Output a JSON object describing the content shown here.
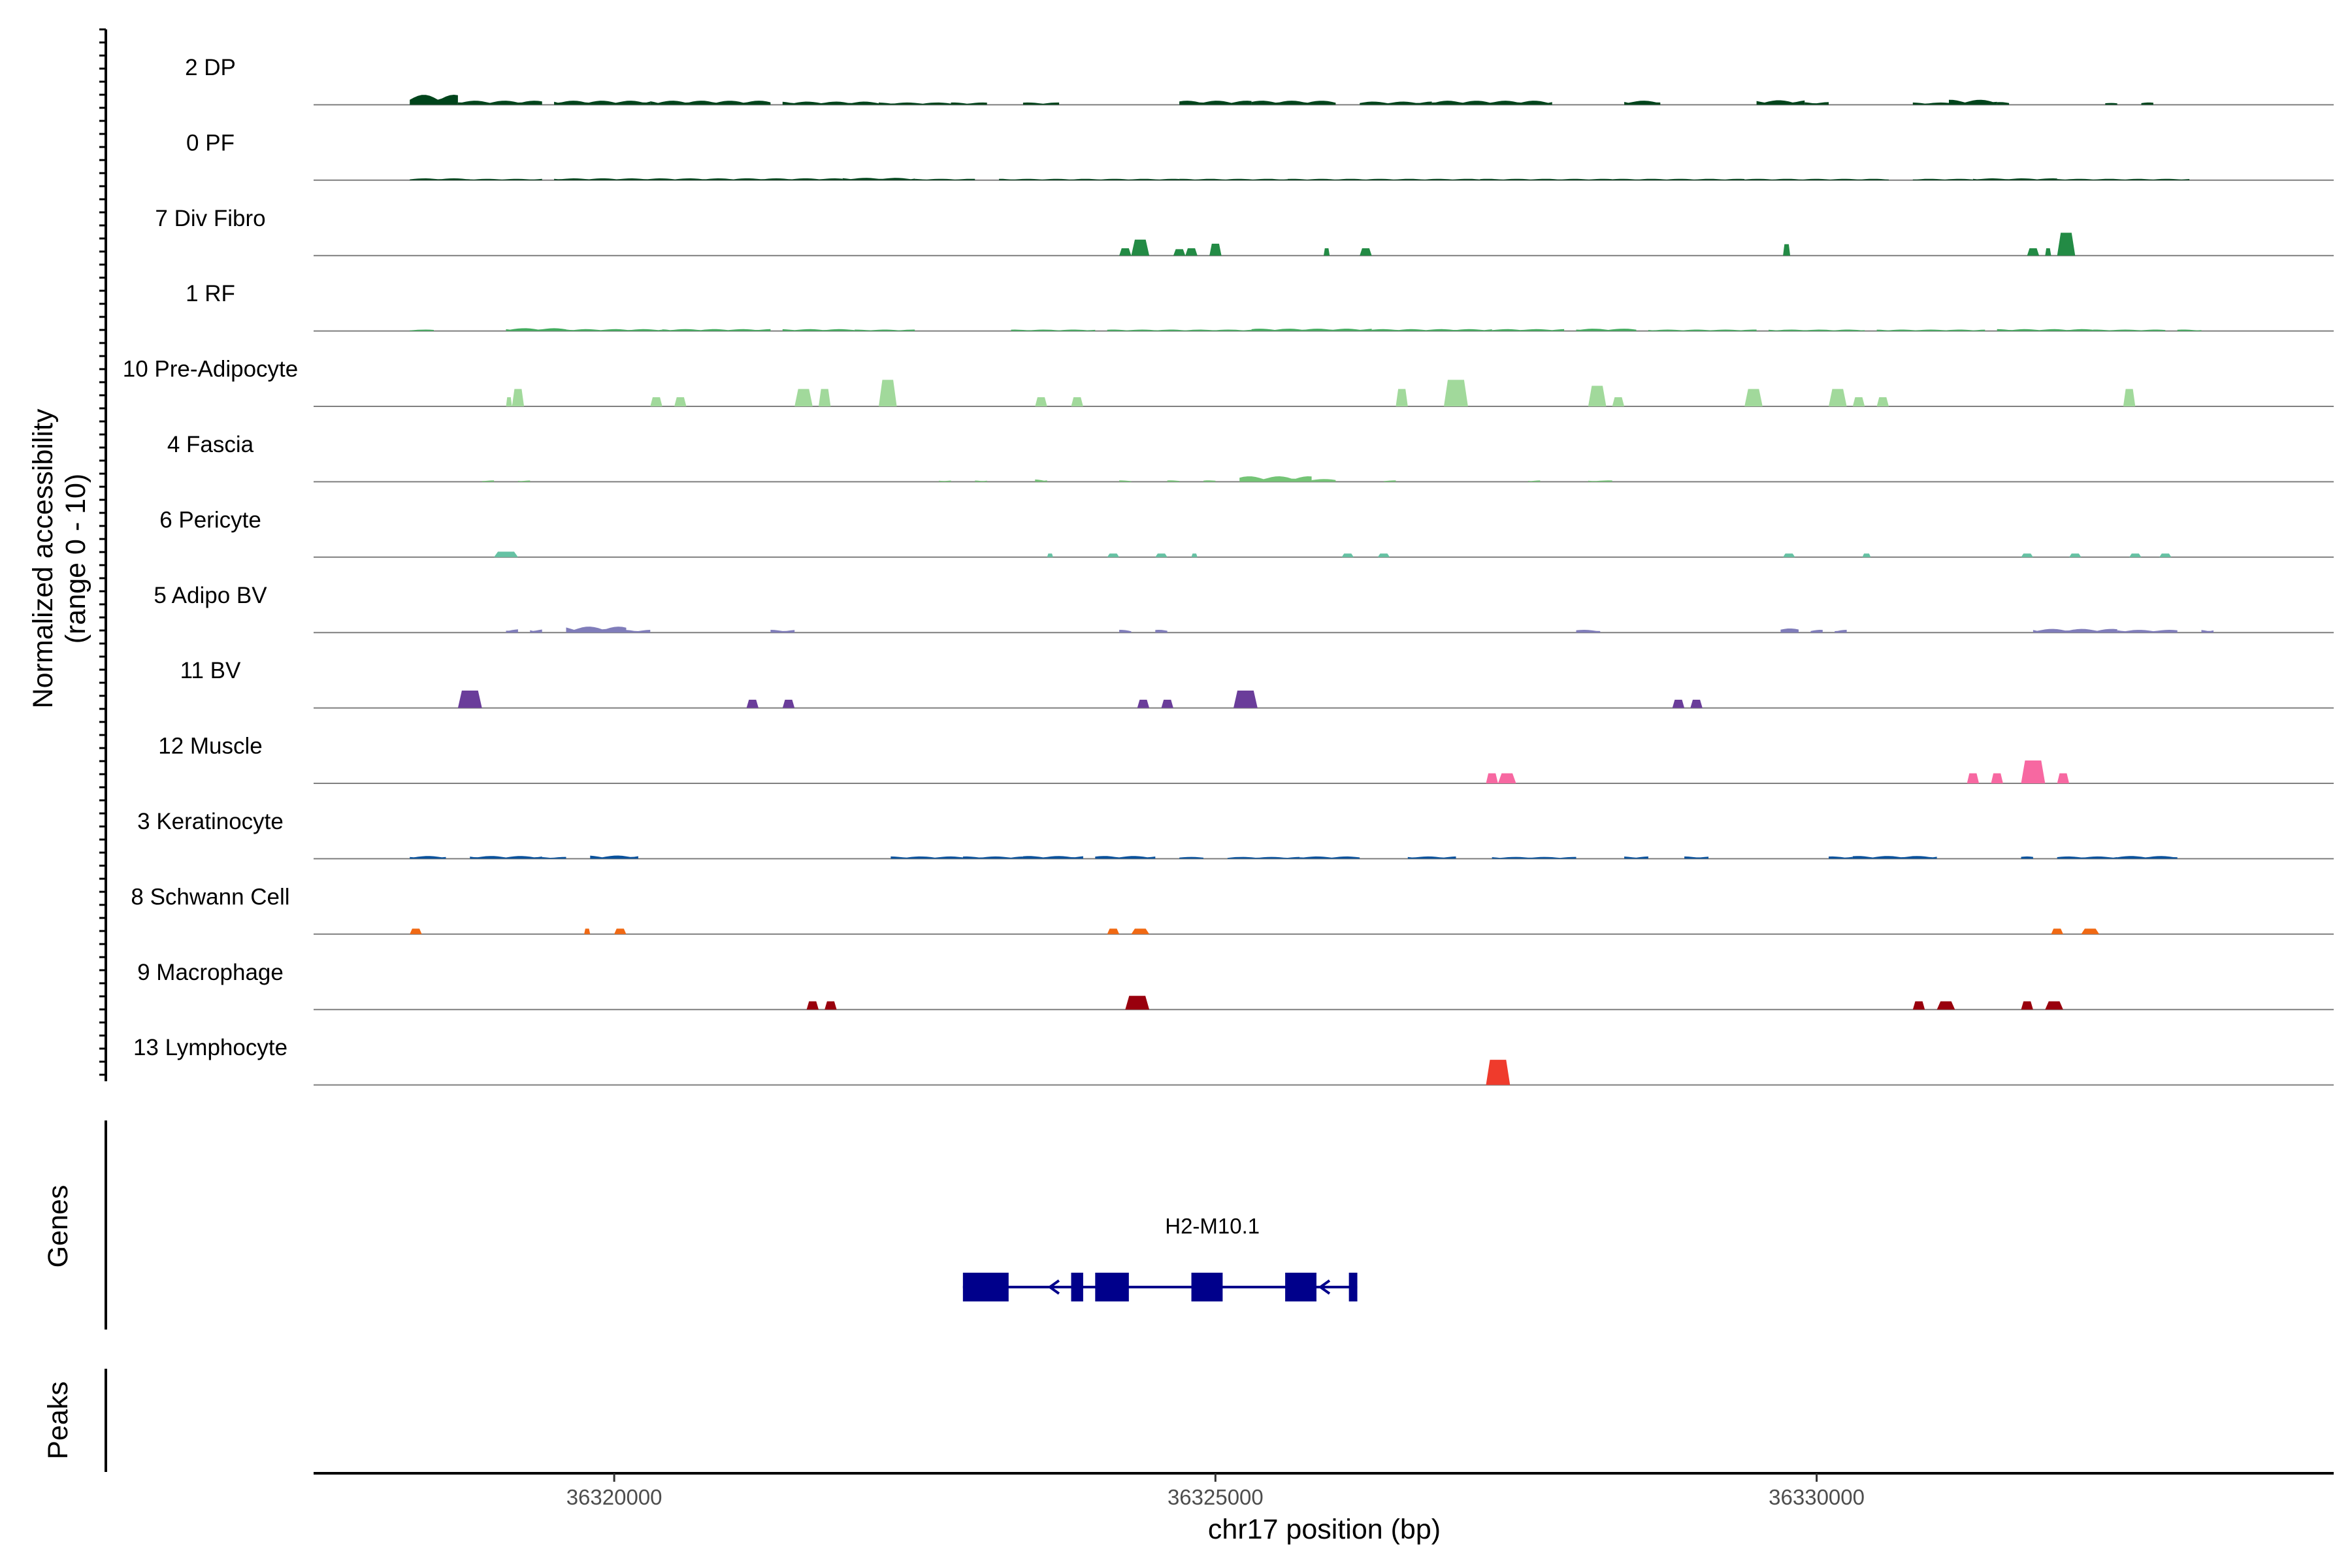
{
  "chart_data": {
    "type": "area",
    "title": "",
    "ylabel_line1": "Normalized accessibility",
    "ylabel_line2": "(range 0 - 10)",
    "yrange": [
      0,
      10
    ],
    "xlabel": "chr17 position (bp)",
    "xlim": [
      36317500,
      36334300
    ],
    "x_ticks": [
      36320000,
      36325000,
      36330000
    ],
    "x_tick_labels": [
      "36320000",
      "36325000",
      "36330000"
    ],
    "genes_panel_label": "Genes",
    "peaks_panel_label": "Peaks",
    "tracks": [
      {
        "name": "2 DP",
        "color": "#00441b",
        "style": "spiky",
        "segments": [
          [
            36318300,
            36318700,
            2.2
          ],
          [
            36318700,
            36319400,
            0.9
          ],
          [
            36319500,
            36320300,
            0.9
          ],
          [
            36320300,
            36321300,
            0.9
          ],
          [
            36321400,
            36322200,
            0.7
          ],
          [
            36322200,
            36322800,
            0.5
          ],
          [
            36322800,
            36323100,
            0.5
          ],
          [
            36323400,
            36323700,
            0.5
          ],
          [
            36324700,
            36325300,
            0.9
          ],
          [
            36325300,
            36326000,
            0.9
          ],
          [
            36326200,
            36326800,
            0.7
          ],
          [
            36326800,
            36327800,
            0.9
          ],
          [
            36328400,
            36328700,
            0.9
          ],
          [
            36329500,
            36329900,
            1.0
          ],
          [
            36329900,
            36330100,
            0.6
          ],
          [
            36330800,
            36331100,
            0.5
          ],
          [
            36331100,
            36331500,
            1.1
          ],
          [
            36331500,
            36331600,
            0.6
          ],
          [
            36332400,
            36332500,
            0.4
          ],
          [
            36332700,
            36332800,
            0.5
          ]
        ]
      },
      {
        "name": "0 PF",
        "color": "#00441b",
        "style": "spiky",
        "segments": [
          [
            36318300,
            36318800,
            0.4
          ],
          [
            36318800,
            36319400,
            0.3
          ],
          [
            36319500,
            36321900,
            0.4
          ],
          [
            36321900,
            36322500,
            0.5
          ],
          [
            36322500,
            36323000,
            0.3
          ],
          [
            36323200,
            36324700,
            0.3
          ],
          [
            36324700,
            36325600,
            0.3
          ],
          [
            36325600,
            36327200,
            0.3
          ],
          [
            36327200,
            36328300,
            0.3
          ],
          [
            36328300,
            36329400,
            0.3
          ],
          [
            36329400,
            36330600,
            0.3
          ],
          [
            36330800,
            36331300,
            0.3
          ],
          [
            36331300,
            36332000,
            0.4
          ],
          [
            36332000,
            36332700,
            0.3
          ],
          [
            36332700,
            36333100,
            0.3
          ]
        ]
      },
      {
        "name": "7 Div Fibro",
        "color": "#238b45",
        "style": "blocks",
        "segments": [
          [
            36324200,
            36324300,
            1.6
          ],
          [
            36324300,
            36324450,
            3.5
          ],
          [
            36324650,
            36324750,
            1.4
          ],
          [
            36324750,
            36324850,
            1.6
          ],
          [
            36324950,
            36325050,
            2.6
          ],
          [
            36325900,
            36325950,
            1.6
          ],
          [
            36326200,
            36326300,
            1.6
          ],
          [
            36329720,
            36329780,
            2.5
          ],
          [
            36331750,
            36331850,
            1.6
          ],
          [
            36331900,
            36331950,
            1.6
          ],
          [
            36332000,
            36332150,
            5.0
          ]
        ]
      },
      {
        "name": "1 RF",
        "color": "#41ab5d",
        "style": "spiky",
        "segments": [
          [
            36318300,
            36318500,
            0.3
          ],
          [
            36319100,
            36319600,
            0.6
          ],
          [
            36319600,
            36320400,
            0.4
          ],
          [
            36320400,
            36321300,
            0.4
          ],
          [
            36321400,
            36322000,
            0.4
          ],
          [
            36322000,
            36322500,
            0.3
          ],
          [
            36323300,
            36324000,
            0.3
          ],
          [
            36324100,
            36325300,
            0.3
          ],
          [
            36325300,
            36326300,
            0.5
          ],
          [
            36326300,
            36327300,
            0.4
          ],
          [
            36327300,
            36327900,
            0.4
          ],
          [
            36328000,
            36328500,
            0.5
          ],
          [
            36328600,
            36329500,
            0.3
          ],
          [
            36329600,
            36330400,
            0.3
          ],
          [
            36330500,
            36331400,
            0.3
          ],
          [
            36331500,
            36332300,
            0.4
          ],
          [
            36332300,
            36332900,
            0.3
          ],
          [
            36333000,
            36333200,
            0.3
          ]
        ]
      },
      {
        "name": "10 Pre-Adipocyte",
        "color": "#a1d99b",
        "style": "blocks",
        "segments": [
          [
            36319100,
            36319150,
            2.0
          ],
          [
            36319150,
            36319250,
            3.8
          ],
          [
            36320300,
            36320400,
            2.0
          ],
          [
            36320500,
            36320600,
            2.0
          ],
          [
            36321500,
            36321650,
            3.8
          ],
          [
            36321700,
            36321800,
            3.8
          ],
          [
            36322200,
            36322350,
            5.8
          ],
          [
            36323500,
            36323600,
            2.0
          ],
          [
            36323800,
            36323900,
            2.0
          ],
          [
            36326500,
            36326600,
            3.8
          ],
          [
            36326900,
            36327100,
            5.8
          ],
          [
            36328100,
            36328250,
            4.5
          ],
          [
            36328300,
            36328400,
            2.0
          ],
          [
            36329400,
            36329550,
            3.8
          ],
          [
            36330100,
            36330250,
            3.8
          ],
          [
            36330300,
            36330400,
            2.0
          ],
          [
            36330500,
            36330600,
            2.0
          ],
          [
            36332550,
            36332650,
            3.8
          ]
        ]
      },
      {
        "name": "4 Fascia",
        "color": "#74c476",
        "style": "spiky",
        "segments": [
          [
            36318900,
            36319000,
            0.3
          ],
          [
            36319200,
            36319300,
            0.3
          ],
          [
            36322700,
            36322800,
            0.3
          ],
          [
            36323000,
            36323100,
            0.3
          ],
          [
            36323500,
            36323600,
            0.5
          ],
          [
            36324200,
            36324300,
            0.3
          ],
          [
            36324600,
            36324700,
            0.3
          ],
          [
            36324900,
            36325000,
            0.3
          ],
          [
            36325200,
            36325800,
            1.2
          ],
          [
            36325800,
            36326000,
            0.6
          ],
          [
            36326400,
            36326500,
            0.3
          ],
          [
            36327600,
            36327700,
            0.3
          ],
          [
            36328100,
            36328300,
            0.3
          ]
        ]
      },
      {
        "name": "6 Pericyte",
        "color": "#66c2a4",
        "style": "blocks",
        "segments": [
          [
            36319000,
            36319200,
            1.2
          ],
          [
            36323600,
            36323650,
            0.8
          ],
          [
            36324100,
            36324200,
            0.8
          ],
          [
            36324500,
            36324600,
            0.8
          ],
          [
            36324800,
            36324850,
            0.8
          ],
          [
            36326050,
            36326150,
            0.8
          ],
          [
            36326350,
            36326450,
            0.8
          ],
          [
            36329720,
            36329820,
            0.8
          ],
          [
            36330380,
            36330450,
            0.8
          ],
          [
            36331700,
            36331800,
            0.8
          ],
          [
            36332100,
            36332200,
            0.8
          ],
          [
            36332600,
            36332700,
            0.8
          ],
          [
            36332850,
            36332950,
            0.8
          ]
        ]
      },
      {
        "name": "5 Adipo BV",
        "color": "#807dba",
        "style": "spiky",
        "segments": [
          [
            36319100,
            36319200,
            0.7
          ],
          [
            36319300,
            36319400,
            0.7
          ],
          [
            36319600,
            36320100,
            1.3
          ],
          [
            36320100,
            36320300,
            0.6
          ],
          [
            36321300,
            36321500,
            0.6
          ],
          [
            36324200,
            36324300,
            0.6
          ],
          [
            36324500,
            36324600,
            0.6
          ],
          [
            36328000,
            36328200,
            0.6
          ],
          [
            36329700,
            36329850,
            0.9
          ],
          [
            36329950,
            36330050,
            0.6
          ],
          [
            36330150,
            36330250,
            0.6
          ],
          [
            36331800,
            36332500,
            0.8
          ],
          [
            36332500,
            36333000,
            0.6
          ],
          [
            36333200,
            36333300,
            0.6
          ]
        ]
      },
      {
        "name": "11 BV",
        "color": "#6a3d9a",
        "style": "blocks",
        "segments": [
          [
            36318700,
            36318900,
            3.8
          ],
          [
            36321100,
            36321200,
            1.8
          ],
          [
            36321400,
            36321500,
            1.8
          ],
          [
            36324350,
            36324450,
            1.8
          ],
          [
            36324550,
            36324650,
            1.8
          ],
          [
            36325150,
            36325350,
            3.8
          ],
          [
            36328800,
            36328900,
            1.8
          ],
          [
            36328950,
            36329050,
            1.8
          ]
        ]
      },
      {
        "name": "12 Muscle",
        "color": "#f768a1",
        "style": "blocks",
        "segments": [
          [
            36327250,
            36327350,
            2.2
          ],
          [
            36327350,
            36327500,
            2.2
          ],
          [
            36331250,
            36331350,
            2.2
          ],
          [
            36331450,
            36331550,
            2.2
          ],
          [
            36331700,
            36331900,
            5.0
          ],
          [
            36332000,
            36332100,
            2.2
          ]
        ]
      },
      {
        "name": "3 Keratinocyte",
        "color": "#08519c",
        "style": "spiky",
        "segments": [
          [
            36318300,
            36318600,
            0.6
          ],
          [
            36318800,
            36319400,
            0.6
          ],
          [
            36319400,
            36319600,
            0.4
          ],
          [
            36319800,
            36320200,
            0.7
          ],
          [
            36322300,
            36322900,
            0.5
          ],
          [
            36322900,
            36323400,
            0.5
          ],
          [
            36323400,
            36323900,
            0.6
          ],
          [
            36324000,
            36324500,
            0.6
          ],
          [
            36324700,
            36324900,
            0.4
          ],
          [
            36325100,
            36325700,
            0.4
          ],
          [
            36325700,
            36326200,
            0.5
          ],
          [
            36326600,
            36327000,
            0.5
          ],
          [
            36327300,
            36328000,
            0.4
          ],
          [
            36328400,
            36328600,
            0.5
          ],
          [
            36328900,
            36329100,
            0.5
          ],
          [
            36330100,
            36330300,
            0.5
          ],
          [
            36330300,
            36331000,
            0.6
          ],
          [
            36331700,
            36331800,
            0.5
          ],
          [
            36332000,
            36332500,
            0.5
          ],
          [
            36332500,
            36333000,
            0.6
          ]
        ]
      },
      {
        "name": "8 Schwann Cell",
        "color": "#f16913",
        "style": "blocks",
        "segments": [
          [
            36318300,
            36318400,
            1.2
          ],
          [
            36319750,
            36319800,
            1.2
          ],
          [
            36320000,
            36320100,
            1.2
          ],
          [
            36324100,
            36324200,
            1.2
          ],
          [
            36324300,
            36324450,
            1.2
          ],
          [
            36331950,
            36332050,
            1.2
          ],
          [
            36332200,
            36332350,
            1.2
          ]
        ]
      },
      {
        "name": "9 Macrophage",
        "color": "#99000d",
        "style": "blocks",
        "segments": [
          [
            36321600,
            36321700,
            1.8
          ],
          [
            36321750,
            36321850,
            1.8
          ],
          [
            36324250,
            36324450,
            3.0
          ],
          [
            36330800,
            36330900,
            1.8
          ],
          [
            36331000,
            36331150,
            1.8
          ],
          [
            36331700,
            36331800,
            1.8
          ],
          [
            36331900,
            36332050,
            1.8
          ]
        ]
      },
      {
        "name": "13 Lymphocyte",
        "color": "#ef3b2c",
        "style": "blocks",
        "segments": [
          [
            36327250,
            36327450,
            5.5
          ]
        ]
      }
    ],
    "gene": {
      "name": "H2-M10.1",
      "strand": "-",
      "start": 36322900,
      "end": 36326180,
      "exons": [
        [
          36322900,
          36323280
        ],
        [
          36323800,
          36323900
        ],
        [
          36324000,
          36324280
        ],
        [
          36324800,
          36325060
        ],
        [
          36325580,
          36325840
        ],
        [
          36326110,
          36326180
        ]
      ],
      "arrow_positions": [
        36323650,
        36324870,
        36325900
      ]
    }
  }
}
